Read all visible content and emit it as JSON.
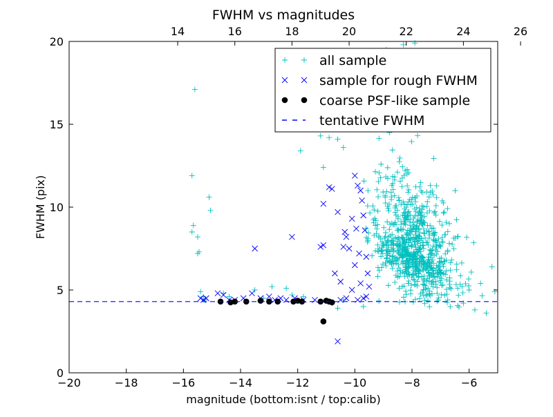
{
  "chart_data": {
    "type": "scatter",
    "title": "FWHM vs magnitudes",
    "xlabel": "magnitude (bottom:isnt / top:calib)",
    "ylabel": "FWHM (pix)",
    "xlim": [
      -20,
      -5
    ],
    "ylim": [
      0,
      20
    ],
    "x_ticks": [
      -20,
      -18,
      -16,
      -14,
      -12,
      -10,
      -8,
      -6
    ],
    "x_tick_labels": [
      "−20",
      "−18",
      "−16",
      "−14",
      "−12",
      "−10",
      "−8",
      "−6"
    ],
    "y_ticks": [
      0,
      5,
      10,
      15,
      20
    ],
    "y_tick_labels": [
      "0",
      "5",
      "10",
      "15",
      "20"
    ],
    "top_axis": {
      "offset_from_bottom": 30.2,
      "ticks": [
        14,
        16,
        18,
        20,
        22,
        24,
        26
      ],
      "tick_labels": [
        "14",
        "16",
        "18",
        "20",
        "22",
        "24",
        "26"
      ]
    },
    "grid": false,
    "legend_position": "top-right",
    "legend": [
      {
        "label": "all sample",
        "marker": "plus",
        "color": "#00bfbf"
      },
      {
        "label": "sample for rough FWHM",
        "marker": "x",
        "color": "#0000ff"
      },
      {
        "label": "coarse PSF-like sample",
        "marker": "circle",
        "color": "#000000"
      },
      {
        "label": "tentative FWHM",
        "marker": "dashed-line",
        "color": "#0000ff"
      }
    ],
    "tentative_fwhm": 4.3,
    "series": [
      {
        "name": "all sample",
        "marker": "plus",
        "color": "#00bfbf",
        "generated": true,
        "points": [
          [
            -15.6,
            17.1
          ],
          [
            -15.7,
            11.9
          ],
          [
            -15.7,
            8.5
          ],
          [
            -15.65,
            8.9
          ],
          [
            -15.5,
            8.2
          ],
          [
            -15.45,
            7.3
          ],
          [
            -15.5,
            7.2
          ],
          [
            -15.1,
            10.6
          ],
          [
            -15.05,
            9.8
          ],
          [
            -15.4,
            4.9
          ],
          [
            -15.3,
            4.6
          ],
          [
            -15.25,
            4.4
          ],
          [
            -14.6,
            4.8
          ],
          [
            -14.4,
            4.6
          ],
          [
            -13.5,
            5.0
          ],
          [
            -13.2,
            4.5
          ],
          [
            -12.9,
            5.2
          ],
          [
            -12.4,
            5.1
          ],
          [
            -12.2,
            4.7
          ],
          [
            -11.9,
            13.4
          ],
          [
            -11.8,
            4.6
          ],
          [
            -11.2,
            14.3
          ],
          [
            -11.1,
            12.4
          ],
          [
            -10.9,
            14.2
          ],
          [
            -10.8,
            15.3
          ],
          [
            -10.6,
            14.1
          ],
          [
            -10.4,
            13.6
          ],
          [
            -10.2,
            14.8
          ],
          [
            -10.0,
            16.0
          ],
          [
            -9.95,
            14.9
          ],
          [
            -9.8,
            16.8
          ],
          [
            -9.6,
            17.5
          ],
          [
            -9.4,
            15.0
          ],
          [
            -9.0,
            18.2
          ],
          [
            -8.9,
            19.5
          ],
          [
            -8.7,
            18.5
          ],
          [
            -8.5,
            17.3
          ],
          [
            -8.3,
            19.8
          ],
          [
            -7.9,
            19.9
          ],
          [
            -7.6,
            19.0
          ],
          [
            -7.4,
            16.5
          ],
          [
            -7.0,
            15.0
          ],
          [
            -6.8,
            6.8
          ],
          [
            -6.4,
            5.1
          ],
          [
            -6.2,
            4.2
          ],
          [
            -6.0,
            5.0
          ],
          [
            -5.8,
            3.8
          ],
          [
            -5.6,
            5.4
          ],
          [
            -5.4,
            3.6
          ],
          [
            -5.2,
            6.4
          ],
          [
            -5.1,
            4.9
          ],
          [
            -10.8,
            4.2
          ],
          [
            -10.6,
            3.9
          ],
          [
            -10.4,
            4.4
          ],
          [
            -9.7,
            4.0
          ]
        ]
      },
      {
        "name": "sample for rough FWHM",
        "marker": "x",
        "color": "#0000ff",
        "points": [
          [
            -15.4,
            4.5
          ],
          [
            -15.3,
            4.4
          ],
          [
            -15.2,
            4.5
          ],
          [
            -14.8,
            4.8
          ],
          [
            -14.6,
            4.7
          ],
          [
            -14.4,
            4.4
          ],
          [
            -14.2,
            4.4
          ],
          [
            -13.9,
            4.5
          ],
          [
            -13.6,
            4.8
          ],
          [
            -13.5,
            7.5
          ],
          [
            -13.3,
            4.5
          ],
          [
            -13.0,
            4.6
          ],
          [
            -12.8,
            4.4
          ],
          [
            -12.6,
            4.5
          ],
          [
            -12.4,
            4.4
          ],
          [
            -12.2,
            8.2
          ],
          [
            -12.1,
            4.5
          ],
          [
            -11.8,
            4.4
          ],
          [
            -11.4,
            4.4
          ],
          [
            -11.2,
            7.6
          ],
          [
            -11.1,
            7.7
          ],
          [
            -11.1,
            10.2
          ],
          [
            -10.9,
            11.2
          ],
          [
            -10.8,
            11.1
          ],
          [
            -10.7,
            6.0
          ],
          [
            -10.6,
            9.7
          ],
          [
            -10.6,
            1.9
          ],
          [
            -10.5,
            4.4
          ],
          [
            -10.4,
            7.6
          ],
          [
            -10.35,
            8.5
          ],
          [
            -10.3,
            8.2
          ],
          [
            -10.2,
            7.5
          ],
          [
            -10.1,
            9.3
          ],
          [
            -10.0,
            11.9
          ],
          [
            -9.95,
            8.7
          ],
          [
            -9.9,
            11.3
          ],
          [
            -9.8,
            11.0
          ],
          [
            -9.75,
            10.4
          ],
          [
            -9.7,
            9.5
          ],
          [
            -9.65,
            8.6
          ],
          [
            -9.6,
            7.0
          ],
          [
            -9.55,
            6.0
          ],
          [
            -9.5,
            5.2
          ],
          [
            -9.8,
            5.4
          ],
          [
            -10.1,
            5.0
          ],
          [
            -10.3,
            4.5
          ],
          [
            -9.9,
            4.4
          ],
          [
            -9.7,
            4.5
          ],
          [
            -9.6,
            4.6
          ],
          [
            -10.5,
            5.5
          ],
          [
            -10.0,
            6.5
          ],
          [
            -9.85,
            7.2
          ]
        ]
      },
      {
        "name": "coarse PSF-like sample",
        "marker": "circle",
        "color": "#000000",
        "points": [
          [
            -14.7,
            4.3
          ],
          [
            -14.35,
            4.25
          ],
          [
            -14.2,
            4.3
          ],
          [
            -13.8,
            4.3
          ],
          [
            -13.3,
            4.35
          ],
          [
            -13.0,
            4.3
          ],
          [
            -12.7,
            4.3
          ],
          [
            -12.15,
            4.3
          ],
          [
            -12.0,
            4.35
          ],
          [
            -11.85,
            4.3
          ],
          [
            -11.2,
            4.3
          ],
          [
            -11.0,
            4.35
          ],
          [
            -10.9,
            4.3
          ],
          [
            -10.8,
            4.25
          ],
          [
            -11.1,
            3.1
          ]
        ]
      }
    ],
    "cluster": {
      "name": "all sample",
      "count": 820,
      "center": [
        -8.0,
        7.3
      ],
      "spread": [
        0.75,
        1.9
      ],
      "x_range": [
        -9.7,
        -5.5
      ],
      "y_range": [
        3.9,
        17.8
      ]
    }
  }
}
